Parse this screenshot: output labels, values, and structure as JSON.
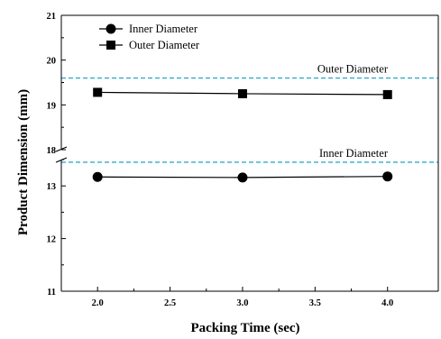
{
  "chart_data": {
    "type": "line",
    "xlabel": "Packing Time (sec)",
    "ylabel": "Product Dimension (mm)",
    "xlim": [
      1.75,
      4.35
    ],
    "x_ticks": [
      "2.0",
      "2.5",
      "3.0",
      "3.5",
      "4.0"
    ],
    "x_tick_values": [
      2.0,
      2.5,
      3.0,
      3.5,
      4.0
    ],
    "y_axis_break": true,
    "y_segments": [
      {
        "ylim": [
          11,
          13.5
        ],
        "ticks": [
          11,
          12,
          13
        ]
      },
      {
        "ylim": [
          18,
          21
        ],
        "ticks": [
          18,
          19,
          20,
          21
        ]
      }
    ],
    "series": [
      {
        "name": "Inner Diameter",
        "marker": "circle",
        "x": [
          2.0,
          3.0,
          4.0
        ],
        "y": [
          13.17,
          13.16,
          13.18
        ]
      },
      {
        "name": "Outer Diameter",
        "marker": "square",
        "x": [
          2.0,
          3.0,
          4.0
        ],
        "y": [
          19.28,
          19.25,
          19.23
        ]
      }
    ],
    "reference_lines": [
      {
        "label": "Outer Diameter",
        "y": 19.6,
        "color": "#33aacc",
        "style": "dashed"
      },
      {
        "label": "Inner Diameter",
        "y": 13.45,
        "color": "#33aacc",
        "style": "dashed"
      }
    ],
    "legend_position": "top-left",
    "grid": false
  }
}
